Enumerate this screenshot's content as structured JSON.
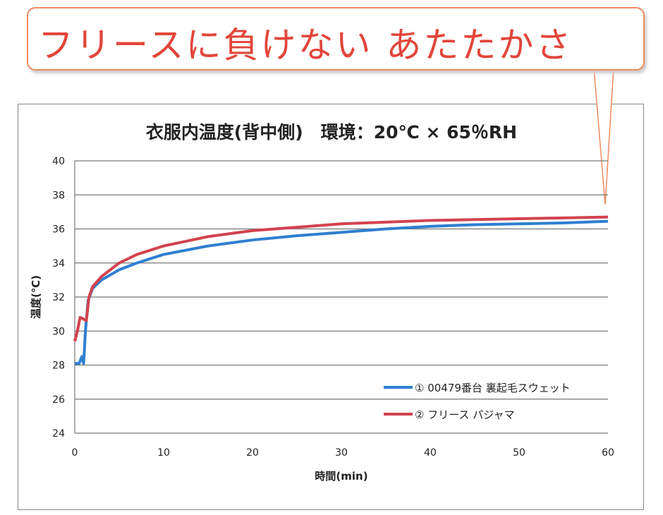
{
  "callout": {
    "text": "フリースに負けない あたたかさ"
  },
  "colors": {
    "blue": "#2e7fd0",
    "red": "#d2424e",
    "callout_border": "#f08a5d",
    "callout_text": "#e2453a"
  },
  "chart_data": {
    "type": "line",
    "title": "衣服内温度(背中側)　環境：20℃ × 65％RH",
    "xlabel": "時間(min)",
    "ylabel": "温度(℃)",
    "xlim": [
      0,
      60
    ],
    "ylim": [
      24,
      40
    ],
    "xticks": [
      "0",
      "10",
      "20",
      "30",
      "40",
      "50",
      "60"
    ],
    "yticks": [
      "24",
      "26",
      "28",
      "30",
      "32",
      "34",
      "36",
      "38",
      "40"
    ],
    "grid": "horizontal",
    "legend_position": "bottom-right",
    "series": [
      {
        "name": "① 00479番台 裏起毛スウェット",
        "color": "#2e7fd0",
        "x": [
          0,
          0.5,
          0.8,
          1.0,
          1.2,
          1.5,
          2,
          3,
          5,
          7,
          10,
          15,
          20,
          25,
          30,
          35,
          40,
          45,
          50,
          55,
          60
        ],
        "y": [
          28.1,
          28.1,
          28.5,
          28.1,
          30,
          31.8,
          32.5,
          33,
          33.6,
          34,
          34.5,
          35,
          35.35,
          35.6,
          35.8,
          36,
          36.15,
          36.25,
          36.3,
          36.35,
          36.45
        ]
      },
      {
        "name": "② フリース パジャマ",
        "color": "#d2424e",
        "x": [
          0,
          0.3,
          0.6,
          1.0,
          1.3,
          1.6,
          2,
          3,
          5,
          7,
          10,
          15,
          20,
          25,
          30,
          35,
          40,
          45,
          50,
          55,
          60
        ],
        "y": [
          29.4,
          30,
          30.8,
          30.7,
          30.6,
          32,
          32.6,
          33.2,
          34,
          34.5,
          35,
          35.55,
          35.9,
          36.1,
          36.3,
          36.4,
          36.5,
          36.55,
          36.6,
          36.65,
          36.7
        ]
      }
    ]
  }
}
